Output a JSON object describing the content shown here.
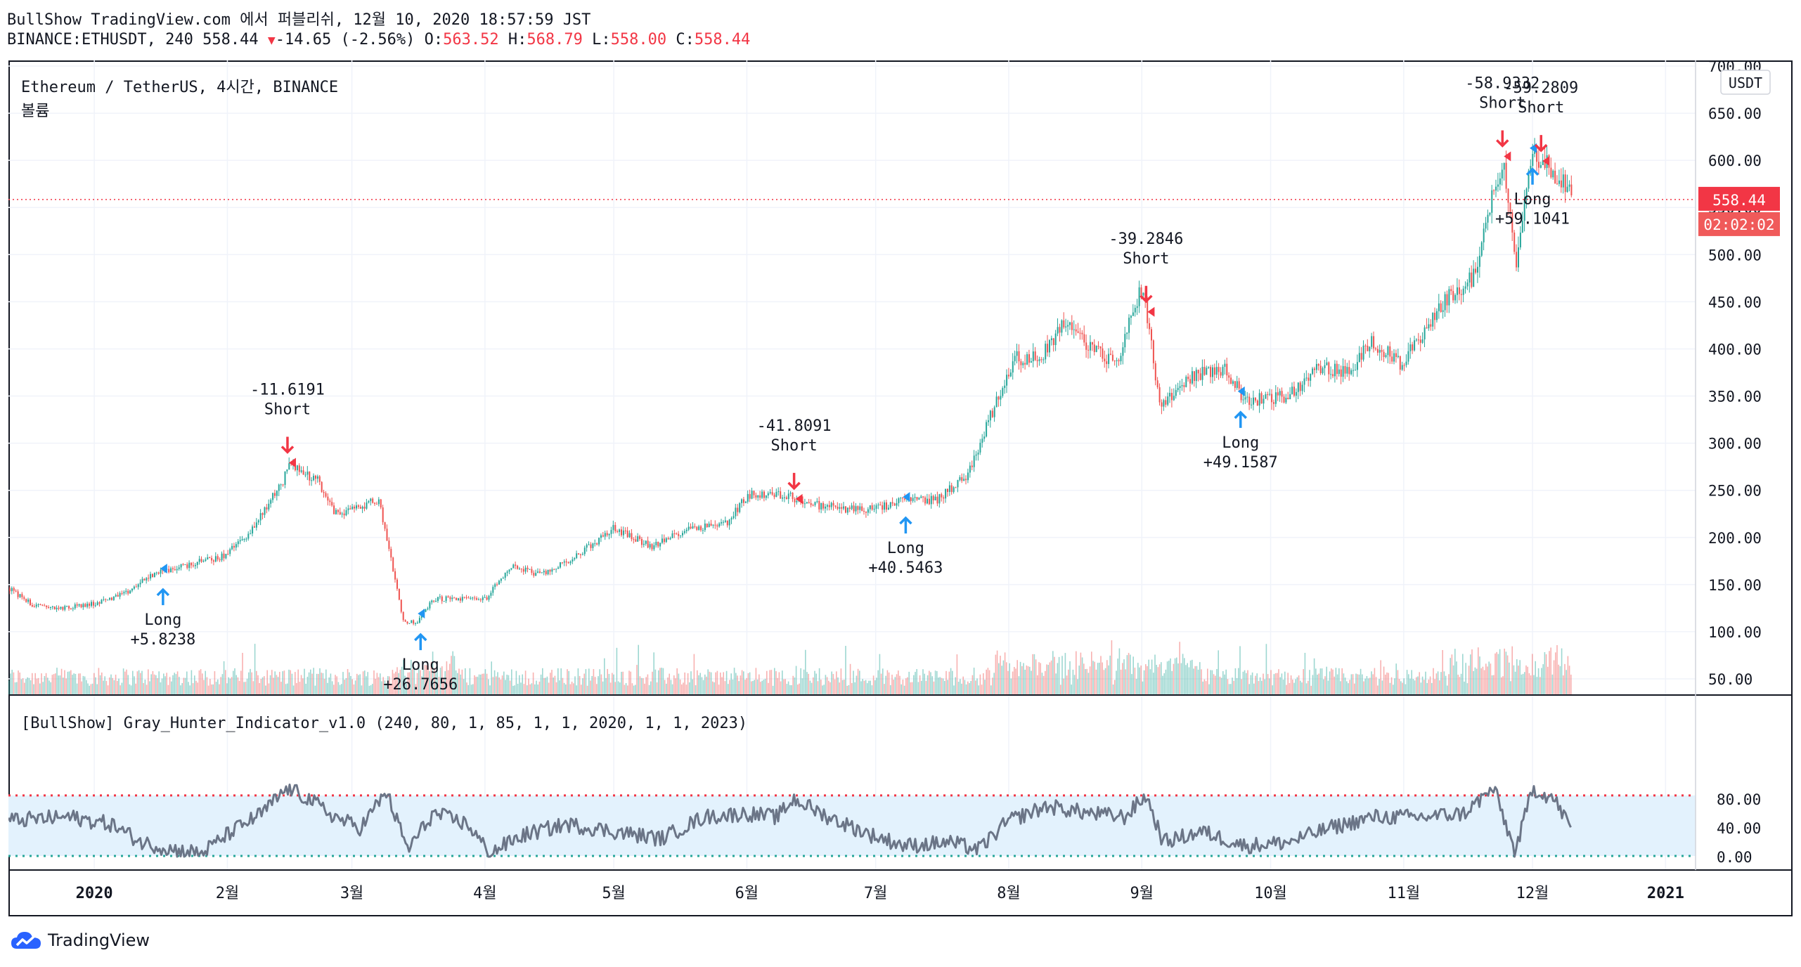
{
  "header": {
    "line1": "BullShow TradingView.com 에서 퍼블리쉬, 12월 10, 2020 18:57:59 JST",
    "symbol": "BINANCE:ETHUSDT, 240",
    "last": "558.44",
    "change_arrow": "▼",
    "change": "-14.65 (-2.56%)",
    "o_label": "O:",
    "o_val": "563.52",
    "h_label": "H:",
    "h_val": "568.79",
    "l_label": "L:",
    "l_val": "558.00",
    "c_label": "C:",
    "c_val": "558.44"
  },
  "pane_title": "Ethereum / TetherUS, 4시간, BINANCE",
  "volume_label": "볼륨",
  "currency_button": "USDT",
  "price_tag": "558.44",
  "countdown_tag": "02:02:02",
  "indicator_title": "[BullShow] Gray_Hunter_Indicator_v1.0 (240, 80, 1, 85, 1, 1, 2020, 1, 1, 2023)",
  "brand": "TradingView",
  "colors": {
    "up": "#26a69a",
    "down": "#ef5350",
    "long": "#2196f3",
    "short": "#f23645",
    "osc": "#6b7587",
    "band": "#e3f2fd",
    "upper_line": "#f23645",
    "lower_line": "#26a69a"
  },
  "chart_data": [
    {
      "type": "candlestick",
      "title": "Ethereum / TetherUS, 4시간, BINANCE",
      "x_ticks": [
        "2020",
        "2월",
        "3월",
        "4월",
        "5월",
        "6월",
        "7월",
        "8월",
        "9월",
        "10월",
        "11월",
        "12월",
        "2021"
      ],
      "y_ticks": [
        "50.00",
        "100.00",
        "150.00",
        "200.00",
        "250.00",
        "300.00",
        "350.00",
        "400.00",
        "450.00",
        "500.00",
        "550.00",
        "600.00",
        "650.00",
        "700.00"
      ],
      "y_unit": "USDT",
      "ylim": [
        30,
        715
      ],
      "last_price": 558.44,
      "price_path": [
        [
          "2019-12-12",
          146
        ],
        [
          "2019-12-18",
          127
        ],
        [
          "2019-12-25",
          125
        ],
        [
          "2020-01-01",
          130
        ],
        [
          "2020-01-08",
          140
        ],
        [
          "2020-01-14",
          160
        ],
        [
          "2020-01-20",
          168
        ],
        [
          "2020-01-31",
          180
        ],
        [
          "2020-02-07",
          210
        ],
        [
          "2020-02-14",
          262
        ],
        [
          "2020-02-15",
          280
        ],
        [
          "2020-02-18",
          270
        ],
        [
          "2020-02-22",
          260
        ],
        [
          "2020-02-26",
          225
        ],
        [
          "2020-03-01",
          230
        ],
        [
          "2020-03-07",
          240
        ],
        [
          "2020-03-09",
          200
        ],
        [
          "2020-03-12",
          130
        ],
        [
          "2020-03-13",
          110
        ],
        [
          "2020-03-16",
          110
        ],
        [
          "2020-03-20",
          135
        ],
        [
          "2020-04-01",
          135
        ],
        [
          "2020-04-07",
          170
        ],
        [
          "2020-04-14",
          160
        ],
        [
          "2020-04-22",
          180
        ],
        [
          "2020-05-01",
          210
        ],
        [
          "2020-05-10",
          190
        ],
        [
          "2020-05-18",
          210
        ],
        [
          "2020-05-27",
          215
        ],
        [
          "2020-06-01",
          245
        ],
        [
          "2020-06-10",
          245
        ],
        [
          "2020-06-16",
          235
        ],
        [
          "2020-06-25",
          230
        ],
        [
          "2020-07-01",
          230
        ],
        [
          "2020-07-08",
          240
        ],
        [
          "2020-07-15",
          240
        ],
        [
          "2020-07-22",
          265
        ],
        [
          "2020-07-26",
          310
        ],
        [
          "2020-08-02",
          390
        ],
        [
          "2020-08-08",
          390
        ],
        [
          "2020-08-14",
          430
        ],
        [
          "2020-08-20",
          400
        ],
        [
          "2020-08-26",
          385
        ],
        [
          "2020-09-01",
          470
        ],
        [
          "2020-09-02",
          440
        ],
        [
          "2020-09-05",
          340
        ],
        [
          "2020-09-12",
          370
        ],
        [
          "2020-09-20",
          380
        ],
        [
          "2020-09-25",
          345
        ],
        [
          "2020-10-05",
          350
        ],
        [
          "2020-10-12",
          380
        ],
        [
          "2020-10-20",
          375
        ],
        [
          "2020-10-24",
          410
        ],
        [
          "2020-10-31",
          385
        ],
        [
          "2020-11-05",
          410
        ],
        [
          "2020-11-10",
          450
        ],
        [
          "2020-11-17",
          475
        ],
        [
          "2020-11-22",
          570
        ],
        [
          "2020-11-24",
          605
        ],
        [
          "2020-11-26",
          520
        ],
        [
          "2020-11-27",
          490
        ],
        [
          "2020-11-30",
          600
        ],
        [
          "2020-12-01",
          610
        ],
        [
          "2020-12-05",
          590
        ],
        [
          "2020-12-09",
          575
        ],
        [
          "2020-12-10",
          558.44
        ]
      ],
      "signals": [
        {
          "type": "Long",
          "label": "Long",
          "value": "+5.8238",
          "date": "2020-01-17"
        },
        {
          "type": "Short",
          "label": "Short",
          "value": "-11.6191",
          "date": "2020-02-15"
        },
        {
          "type": "Long",
          "label": "Long",
          "value": "+26.7656",
          "date": "2020-03-17"
        },
        {
          "type": "Short",
          "label": "Short",
          "value": "-41.8091",
          "date": "2020-06-12"
        },
        {
          "type": "Long",
          "label": "Long",
          "value": "+40.5463",
          "date": "2020-07-08"
        },
        {
          "type": "Short",
          "label": "Short",
          "value": "-39.2846",
          "date": "2020-09-02"
        },
        {
          "type": "Long",
          "label": "Long",
          "value": "+49.1587",
          "date": "2020-09-24"
        },
        {
          "type": "Short",
          "label": "Short",
          "value": "-58.9332",
          "date": "2020-11-24"
        },
        {
          "type": "Long",
          "label": "Long",
          "value": "+59.1041",
          "date": "2020-12-01"
        },
        {
          "type": "Short",
          "label": "Short",
          "value": "-59.2809",
          "date": "2020-12-03"
        }
      ],
      "volume_series": "volume histogram at bottom of price pane (green up / red down)"
    },
    {
      "type": "line",
      "title": "[BullShow] Gray_Hunter_Indicator_v1.0 (240, 80, 1, 85, 1, 1, 2020, 1, 1, 2023)",
      "y_ticks": [
        "0.00",
        "40.00",
        "80.00"
      ],
      "ylim": [
        -5,
        105
      ],
      "upper_level": 85,
      "lower_level": 1,
      "band": [
        1,
        85
      ],
      "oscillator_path": [
        [
          "2019-12-12",
          50
        ],
        [
          "2019-12-26",
          55
        ],
        [
          "2020-01-05",
          45
        ],
        [
          "2020-01-12",
          20
        ],
        [
          "2020-01-19",
          10
        ],
        [
          "2020-01-26",
          5
        ],
        [
          "2020-02-02",
          35
        ],
        [
          "2020-02-09",
          60
        ],
        [
          "2020-02-15",
          95
        ],
        [
          "2020-02-20",
          80
        ],
        [
          "2020-02-26",
          55
        ],
        [
          "2020-03-03",
          40
        ],
        [
          "2020-03-09",
          90
        ],
        [
          "2020-03-14",
          10
        ],
        [
          "2020-03-20",
          60
        ],
        [
          "2020-03-28",
          45
        ],
        [
          "2020-04-02",
          5
        ],
        [
          "2020-04-10",
          30
        ],
        [
          "2020-04-20",
          45
        ],
        [
          "2020-05-01",
          35
        ],
        [
          "2020-05-12",
          25
        ],
        [
          "2020-05-22",
          55
        ],
        [
          "2020-06-01",
          60
        ],
        [
          "2020-06-08",
          55
        ],
        [
          "2020-06-12",
          80
        ],
        [
          "2020-06-20",
          55
        ],
        [
          "2020-06-30",
          30
        ],
        [
          "2020-07-08",
          15
        ],
        [
          "2020-07-18",
          20
        ],
        [
          "2020-07-25",
          10
        ],
        [
          "2020-08-01",
          50
        ],
        [
          "2020-08-10",
          70
        ],
        [
          "2020-08-20",
          60
        ],
        [
          "2020-08-28",
          55
        ],
        [
          "2020-09-02",
          85
        ],
        [
          "2020-09-06",
          20
        ],
        [
          "2020-09-15",
          35
        ],
        [
          "2020-09-25",
          15
        ],
        [
          "2020-10-05",
          20
        ],
        [
          "2020-10-15",
          40
        ],
        [
          "2020-10-25",
          55
        ],
        [
          "2020-11-05",
          55
        ],
        [
          "2020-11-15",
          60
        ],
        [
          "2020-11-22",
          95
        ],
        [
          "2020-11-27",
          5
        ],
        [
          "2020-12-01",
          95
        ],
        [
          "2020-12-06",
          80
        ],
        [
          "2020-12-10",
          40
        ]
      ]
    }
  ]
}
